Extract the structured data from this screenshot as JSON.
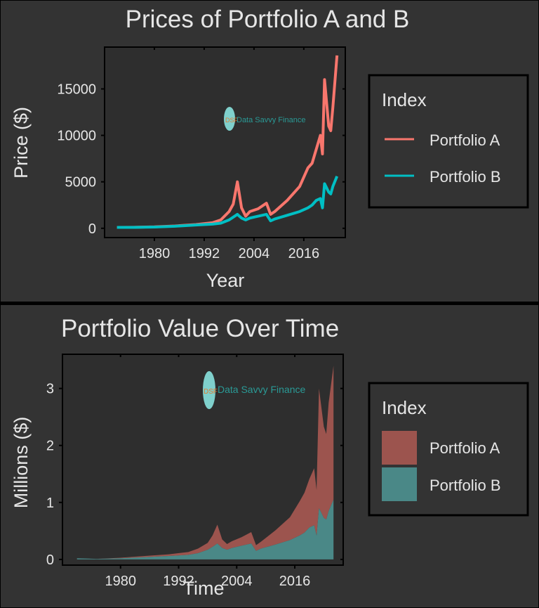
{
  "colors": {
    "background": "#333333",
    "portfolio_a": "#F8766D",
    "portfolio_b": "#00BFC4",
    "area_a": "#9C544E",
    "area_b": "#4A8887"
  },
  "watermark": {
    "text": "Data Savvy Finance",
    "logo": "DSF"
  },
  "chart_data": [
    {
      "type": "line",
      "title": "Prices of Portfolio A and B",
      "xlabel": "Year",
      "ylabel": "Price ($)",
      "xlim": [
        1968,
        2026
      ],
      "ylim": [
        -1000,
        19500
      ],
      "xticks": [
        1980,
        1992,
        2004,
        2016
      ],
      "yticks": [
        0,
        5000,
        10000,
        15000
      ],
      "grid": false,
      "legend": {
        "title": "Index",
        "position": "right"
      },
      "x": [
        1971,
        1975,
        1980,
        1985,
        1990,
        1994,
        1996,
        1998,
        1999,
        2000,
        2001,
        2002,
        2003,
        2005,
        2007,
        2008,
        2009,
        2012,
        2015,
        2017,
        2018,
        2019,
        2020,
        2020.5,
        2021,
        2022,
        2022.5,
        2023,
        2024
      ],
      "series": [
        {
          "name": "Portfolio A",
          "values": [
            100,
            110,
            150,
            250,
            400,
            600,
            900,
            1800,
            2600,
            5000,
            2200,
            1300,
            1800,
            2100,
            2700,
            1500,
            1800,
            3000,
            4500,
            6500,
            7000,
            8500,
            10000,
            8000,
            16000,
            11000,
            10500,
            13000,
            18600
          ]
        },
        {
          "name": "Portfolio B",
          "values": [
            100,
            100,
            130,
            220,
            350,
            450,
            550,
            900,
            1200,
            1500,
            1100,
            900,
            1100,
            1300,
            1500,
            800,
            1000,
            1400,
            1800,
            2200,
            2500,
            3000,
            3200,
            2200,
            4800,
            3900,
            3700,
            4500,
            5600
          ]
        }
      ]
    },
    {
      "type": "area",
      "stacked": true,
      "title": "Portfolio Value Over Time",
      "xlabel": "Time",
      "ylabel": "Millions ($)",
      "xlim": [
        1968,
        2026
      ],
      "ylim": [
        -0.1,
        3.6
      ],
      "xticks": [
        1980,
        1992,
        2004,
        2016
      ],
      "yticks": [
        0,
        1,
        2,
        3
      ],
      "grid": false,
      "legend": {
        "title": "Index",
        "position": "right"
      },
      "x": [
        1971,
        1975,
        1980,
        1985,
        1990,
        1994,
        1996,
        1998,
        1999,
        2000,
        2001,
        2002,
        2003,
        2005,
        2007,
        2008,
        2009,
        2012,
        2015,
        2017,
        2018,
        2019,
        2020,
        2020.5,
        2021,
        2022,
        2022.5,
        2023,
        2024
      ],
      "series": [
        {
          "name": "Portfolio A",
          "values": [
            0,
            0,
            0.01,
            0.02,
            0.03,
            0.05,
            0.08,
            0.12,
            0.2,
            0.33,
            0.15,
            0.1,
            0.12,
            0.15,
            0.2,
            0.1,
            0.12,
            0.25,
            0.4,
            0.6,
            0.7,
            0.85,
            1.0,
            0.8,
            2.1,
            1.6,
            1.5,
            1.9,
            2.35
          ]
        },
        {
          "name": "Portfolio B",
          "values": [
            0.02,
            0.01,
            0.02,
            0.04,
            0.06,
            0.08,
            0.11,
            0.17,
            0.22,
            0.28,
            0.2,
            0.17,
            0.2,
            0.24,
            0.28,
            0.15,
            0.19,
            0.26,
            0.34,
            0.42,
            0.47,
            0.56,
            0.6,
            0.42,
            0.9,
            0.73,
            0.7,
            0.85,
            1.05
          ]
        }
      ]
    }
  ]
}
